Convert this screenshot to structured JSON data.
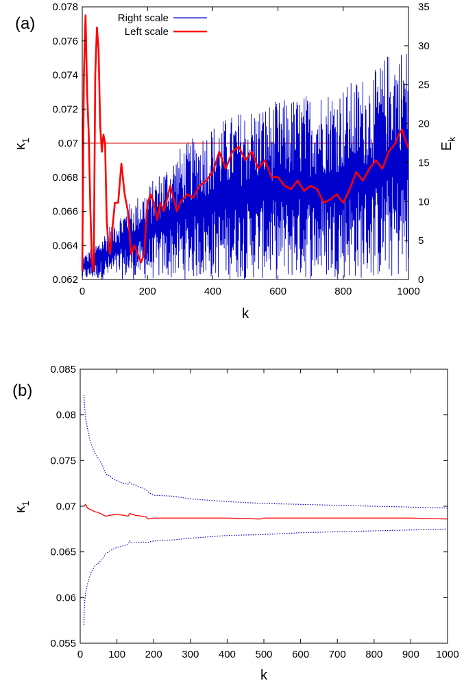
{
  "chart_data": [
    {
      "panel_label": "(a)",
      "type": "line",
      "xlabel": "k",
      "ylabel_left": "κ1",
      "ylabel_right": "Ek",
      "xlim": [
        0,
        1000
      ],
      "ylim_left": [
        0.062,
        0.078
      ],
      "ylim_right": [
        0,
        35
      ],
      "x_ticks": [
        "0",
        "200",
        "400",
        "600",
        "800",
        "1000"
      ],
      "y_ticks_left": [
        "0.062",
        "0.064",
        "0.066",
        "0.068",
        "0.07",
        "0.072",
        "0.074",
        "0.076",
        "0.078"
      ],
      "y_ticks_right": [
        "0",
        "5",
        "10",
        "15",
        "20",
        "25",
        "30",
        "35"
      ],
      "legend_position": "top-left",
      "reference_line": {
        "axis": "left",
        "y": 0.07,
        "color": "#cc0000"
      },
      "series": [
        {
          "name": "Right scale",
          "axis": "right",
          "color": "#0000cc",
          "style": "thin-oscillating",
          "envelope_upper": {
            "x": [
              0,
              50,
              100,
              200,
              300,
              400,
              500,
              600,
              700,
              800,
              900,
              950,
              1000
            ],
            "y": [
              3,
              5,
              8,
              12,
              17,
              20,
              22,
              23,
              24,
              25,
              27,
              30,
              30
            ]
          },
          "envelope_lower": {
            "x": [
              0,
              1000
            ],
            "y": [
              0,
              0
            ]
          }
        },
        {
          "name": "Left scale",
          "axis": "left",
          "color": "#ff0000",
          "style": "thick",
          "x": [
            0,
            5,
            10,
            15,
            20,
            25,
            30,
            35,
            40,
            45,
            50,
            55,
            60,
            65,
            70,
            75,
            80,
            85,
            90,
            100,
            110,
            120,
            130,
            140,
            150,
            160,
            170,
            180,
            190,
            200,
            210,
            220,
            230,
            240,
            250,
            270,
            290,
            300,
            320,
            340,
            360,
            380,
            400,
            420,
            440,
            460,
            480,
            500,
            520,
            540,
            560,
            580,
            600,
            620,
            640,
            660,
            680,
            700,
            720,
            740,
            760,
            780,
            800,
            820,
            840,
            860,
            880,
            900,
            920,
            940,
            960,
            970,
            980,
            990,
            1000
          ],
          "y": [
            0.0625,
            0.074,
            0.0775,
            0.073,
            0.0705,
            0.066,
            0.063,
            0.0625,
            0.074,
            0.0768,
            0.0755,
            0.071,
            0.0695,
            0.0705,
            0.07,
            0.0655,
            0.064,
            0.0635,
            0.0645,
            0.0665,
            0.0665,
            0.0688,
            0.067,
            0.066,
            0.0635,
            0.064,
            0.0635,
            0.063,
            0.0635,
            0.0665,
            0.067,
            0.0665,
            0.0655,
            0.0665,
            0.066,
            0.0675,
            0.066,
            0.0665,
            0.067,
            0.0668,
            0.0675,
            0.0678,
            0.0683,
            0.0695,
            0.0685,
            0.0695,
            0.0698,
            0.069,
            0.0695,
            0.0685,
            0.069,
            0.068,
            0.068,
            0.0675,
            0.0673,
            0.0678,
            0.0672,
            0.0675,
            0.0673,
            0.0665,
            0.0667,
            0.067,
            0.0665,
            0.0673,
            0.0683,
            0.0678,
            0.0685,
            0.069,
            0.0685,
            0.0695,
            0.07,
            0.0705,
            0.0708,
            0.0702,
            0.0697
          ]
        }
      ]
    },
    {
      "panel_label": "(b)",
      "type": "line",
      "xlabel": "k",
      "ylabel": "κ1",
      "xlim": [
        0,
        1000
      ],
      "ylim": [
        0.055,
        0.085
      ],
      "x_ticks": [
        "0",
        "100",
        "200",
        "300",
        "400",
        "500",
        "600",
        "700",
        "800",
        "900",
        "1000"
      ],
      "y_ticks": [
        "0.055",
        "0.06",
        "0.065",
        "0.07",
        "0.075",
        "0.08",
        "0.085"
      ],
      "series": [
        {
          "color": "#ff0000",
          "style": "solid",
          "x": [
            10,
            15,
            20,
            30,
            40,
            50,
            60,
            70,
            80,
            100,
            120,
            130,
            135,
            150,
            170,
            180,
            185,
            200,
            250,
            300,
            400,
            490,
            500,
            600,
            700,
            800,
            900,
            1000
          ],
          "y": [
            0.07,
            0.0702,
            0.0698,
            0.0696,
            0.0694,
            0.0693,
            0.0691,
            0.0689,
            0.069,
            0.0691,
            0.069,
            0.0689,
            0.0692,
            0.069,
            0.0689,
            0.0688,
            0.0686,
            0.0687,
            0.0687,
            0.0687,
            0.0687,
            0.0686,
            0.0687,
            0.0687,
            0.0687,
            0.0687,
            0.0687,
            0.0686
          ]
        },
        {
          "color": "#0000cc",
          "style": "dotted",
          "x": [
            10,
            12,
            15,
            20,
            25,
            30,
            40,
            50,
            60,
            70,
            80,
            90,
            100,
            110,
            120,
            130,
            135,
            140,
            150,
            160,
            170,
            180,
            190,
            200,
            250,
            300,
            400,
            500,
            600,
            700,
            800,
            900,
            1000
          ],
          "y": [
            0.0822,
            0.081,
            0.0795,
            0.0785,
            0.0775,
            0.0768,
            0.0758,
            0.0752,
            0.0745,
            0.0735,
            0.0733,
            0.073,
            0.0728,
            0.0726,
            0.0725,
            0.0724,
            0.0726,
            0.0724,
            0.0723,
            0.0721,
            0.072,
            0.0718,
            0.0714,
            0.0712,
            0.0711,
            0.0708,
            0.0705,
            0.0703,
            0.0702,
            0.0701,
            0.07,
            0.0699,
            0.0698
          ]
        },
        {
          "color": "#0000cc",
          "style": "dotted",
          "x": [
            10,
            12,
            15,
            20,
            25,
            30,
            40,
            50,
            60,
            70,
            80,
            90,
            100,
            110,
            120,
            130,
            135,
            140,
            150,
            160,
            170,
            180,
            190,
            200,
            250,
            300,
            400,
            500,
            600,
            700,
            800,
            900,
            1000
          ],
          "y": [
            0.057,
            0.0595,
            0.0605,
            0.0615,
            0.0622,
            0.0628,
            0.0635,
            0.0638,
            0.0642,
            0.0648,
            0.0651,
            0.0653,
            0.0655,
            0.0656,
            0.0657,
            0.0658,
            0.0662,
            0.066,
            0.066,
            0.066,
            0.0661,
            0.066,
            0.0661,
            0.0662,
            0.0663,
            0.0665,
            0.0668,
            0.0669,
            0.0671,
            0.0672,
            0.0673,
            0.0674,
            0.0675
          ]
        }
      ]
    }
  ]
}
